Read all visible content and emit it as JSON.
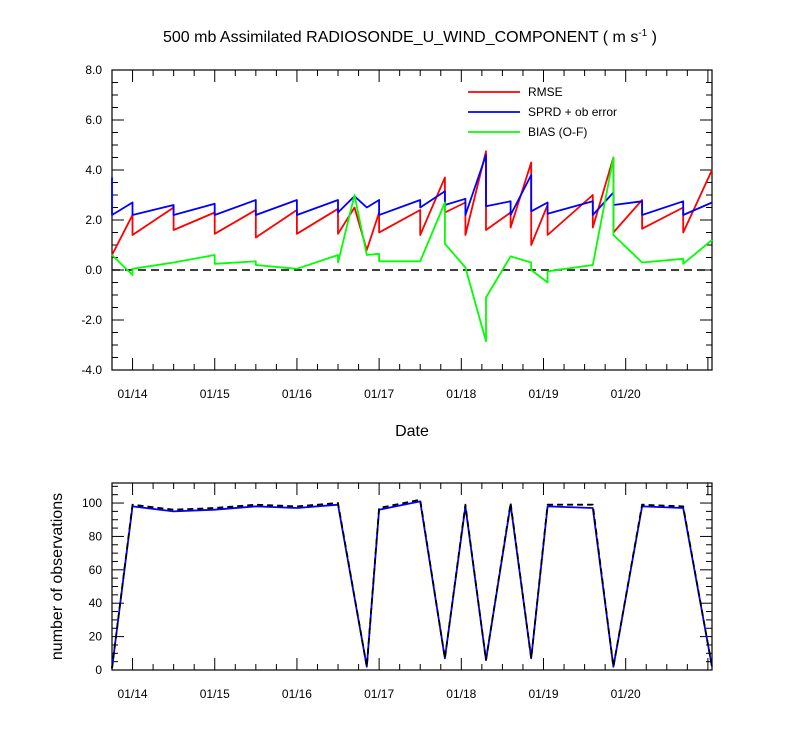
{
  "chart_data": [
    {
      "type": "line",
      "title": "500 mb Assimilated RADIOSONDE_U_WIND_COMPONENT ( m s",
      "title_sup": "-1",
      "title_end": " )",
      "xlabel": "Date",
      "ylabel": "",
      "x_ticks": [
        "01/14",
        "01/15",
        "01/16",
        "01/17",
        "01/18",
        "01/19",
        "01/20"
      ],
      "xlim": [
        0,
        7.3
      ],
      "ylim": [
        -4,
        8
      ],
      "y_ticks": [
        "-4.0",
        "-2.0",
        "0.0",
        "2.0",
        "4.0",
        "6.0",
        "8.0"
      ],
      "zero_line": true,
      "legend": {
        "placement": "top-right"
      },
      "series": [
        {
          "name": "RMSE",
          "color": "#ff0000",
          "points": [
            [
              0.0,
              0.6
            ],
            [
              0.25,
              2.2
            ],
            [
              0.25,
              1.4
            ],
            [
              0.75,
              2.5
            ],
            [
              0.75,
              1.6
            ],
            [
              1.25,
              2.3
            ],
            [
              1.25,
              1.45
            ],
            [
              1.75,
              2.4
            ],
            [
              1.75,
              1.3
            ],
            [
              2.25,
              2.4
            ],
            [
              2.25,
              1.45
            ],
            [
              2.75,
              2.45
            ],
            [
              2.75,
              1.45
            ],
            [
              2.95,
              2.5
            ],
            [
              3.1,
              0.8
            ],
            [
              3.25,
              2.3
            ],
            [
              3.25,
              1.5
            ],
            [
              3.75,
              2.4
            ],
            [
              3.75,
              1.4
            ],
            [
              4.05,
              3.7
            ],
            [
              4.05,
              2.3
            ],
            [
              4.3,
              2.7
            ],
            [
              4.3,
              1.4
            ],
            [
              4.55,
              4.75
            ],
            [
              4.55,
              1.6
            ],
            [
              4.85,
              2.3
            ],
            [
              4.85,
              1.7
            ],
            [
              5.1,
              4.3
            ],
            [
              5.1,
              1.0
            ],
            [
              5.3,
              2.6
            ],
            [
              5.3,
              1.4
            ],
            [
              5.85,
              3.0
            ],
            [
              5.85,
              1.7
            ],
            [
              6.1,
              4.5
            ],
            [
              6.1,
              1.5
            ],
            [
              6.45,
              2.8
            ],
            [
              6.45,
              1.65
            ],
            [
              6.95,
              2.5
            ],
            [
              6.95,
              1.5
            ],
            [
              7.3,
              4.0
            ]
          ]
        },
        {
          "name": "SPRD + ob error",
          "color": "#0000ff",
          "points": [
            [
              0.0,
              3.7
            ],
            [
              0.0,
              2.2
            ],
            [
              0.25,
              2.7
            ],
            [
              0.25,
              2.2
            ],
            [
              0.75,
              2.6
            ],
            [
              0.75,
              2.2
            ],
            [
              1.25,
              2.65
            ],
            [
              1.25,
              2.2
            ],
            [
              1.75,
              2.8
            ],
            [
              1.75,
              2.2
            ],
            [
              2.25,
              2.8
            ],
            [
              2.25,
              2.2
            ],
            [
              2.75,
              2.8
            ],
            [
              2.75,
              2.3
            ],
            [
              2.95,
              2.95
            ],
            [
              3.1,
              2.5
            ],
            [
              3.25,
              2.8
            ],
            [
              3.25,
              2.2
            ],
            [
              3.75,
              2.8
            ],
            [
              3.75,
              2.5
            ],
            [
              4.05,
              3.15
            ],
            [
              4.05,
              2.6
            ],
            [
              4.3,
              2.85
            ],
            [
              4.3,
              2.2
            ],
            [
              4.55,
              4.6
            ],
            [
              4.55,
              2.55
            ],
            [
              4.85,
              2.75
            ],
            [
              4.85,
              2.2
            ],
            [
              5.1,
              3.8
            ],
            [
              5.1,
              2.35
            ],
            [
              5.3,
              2.7
            ],
            [
              5.3,
              2.25
            ],
            [
              5.85,
              2.75
            ],
            [
              5.85,
              2.2
            ],
            [
              6.1,
              3.1
            ],
            [
              6.1,
              2.6
            ],
            [
              6.45,
              2.75
            ],
            [
              6.45,
              2.2
            ],
            [
              6.95,
              2.75
            ],
            [
              6.95,
              2.2
            ],
            [
              7.3,
              2.7
            ]
          ]
        },
        {
          "name": "BIAS (O-F)",
          "color": "#00ff00",
          "points": [
            [
              0.0,
              0.6
            ],
            [
              0.25,
              -0.2
            ],
            [
              0.25,
              0.05
            ],
            [
              0.75,
              0.3
            ],
            [
              1.25,
              0.6
            ],
            [
              1.25,
              0.25
            ],
            [
              1.75,
              0.35
            ],
            [
              1.75,
              0.2
            ],
            [
              2.25,
              0.05
            ],
            [
              2.75,
              0.6
            ],
            [
              2.75,
              0.3
            ],
            [
              2.95,
              3.0
            ],
            [
              3.1,
              0.6
            ],
            [
              3.1,
              0.6
            ],
            [
              3.25,
              0.65
            ],
            [
              3.25,
              0.35
            ],
            [
              3.75,
              0.35
            ],
            [
              4.05,
              2.7
            ],
            [
              4.05,
              1.05
            ],
            [
              4.3,
              0.1
            ],
            [
              4.55,
              -2.85
            ],
            [
              4.55,
              -1.1
            ],
            [
              4.85,
              0.55
            ],
            [
              5.1,
              0.3
            ],
            [
              5.1,
              0.0
            ],
            [
              5.3,
              -0.5
            ],
            [
              5.3,
              -0.05
            ],
            [
              5.85,
              0.2
            ],
            [
              6.1,
              4.5
            ],
            [
              6.1,
              1.4
            ],
            [
              6.45,
              0.3
            ],
            [
              6.95,
              0.45
            ],
            [
              6.95,
              0.25
            ],
            [
              7.3,
              1.2
            ]
          ]
        }
      ]
    },
    {
      "type": "line",
      "title": "",
      "xlabel": "",
      "ylabel": "number of observations",
      "x_ticks": [
        "01/14",
        "01/15",
        "01/16",
        "01/17",
        "01/18",
        "01/19",
        "01/20"
      ],
      "xlim": [
        0,
        7.3
      ],
      "ylim": [
        0,
        112
      ],
      "y_ticks": [
        "0",
        "20",
        "40",
        "60",
        "80",
        "100"
      ],
      "series": [
        {
          "color": "#0000ff",
          "style": "solid",
          "points": [
            [
              0.0,
              1
            ],
            [
              0.25,
              98
            ],
            [
              0.75,
              95
            ],
            [
              1.25,
              96
            ],
            [
              1.75,
              98
            ],
            [
              2.25,
              97
            ],
            [
              2.75,
              99
            ],
            [
              3.1,
              2
            ],
            [
              3.25,
              96
            ],
            [
              3.75,
              101
            ],
            [
              4.05,
              7
            ],
            [
              4.3,
              98
            ],
            [
              4.55,
              6
            ],
            [
              4.85,
              99
            ],
            [
              5.1,
              7
            ],
            [
              5.3,
              98
            ],
            [
              5.85,
              97
            ],
            [
              6.1,
              2
            ],
            [
              6.45,
              98
            ],
            [
              6.95,
              97
            ],
            [
              7.3,
              2
            ]
          ]
        },
        {
          "color": "#000000",
          "style": "dashed",
          "points": [
            [
              0.0,
              1
            ],
            [
              0.25,
              99
            ],
            [
              0.75,
              96
            ],
            [
              1.25,
              97
            ],
            [
              1.75,
              99
            ],
            [
              2.25,
              98
            ],
            [
              2.75,
              100
            ],
            [
              3.1,
              2
            ],
            [
              3.25,
              97
            ],
            [
              3.75,
              102
            ],
            [
              4.05,
              7
            ],
            [
              4.3,
              99
            ],
            [
              4.55,
              6
            ],
            [
              4.85,
              100
            ],
            [
              5.1,
              7
            ],
            [
              5.3,
              99
            ],
            [
              5.85,
              99
            ],
            [
              6.1,
              2
            ],
            [
              6.45,
              99
            ],
            [
              6.95,
              98
            ],
            [
              7.3,
              2
            ]
          ]
        }
      ]
    }
  ]
}
